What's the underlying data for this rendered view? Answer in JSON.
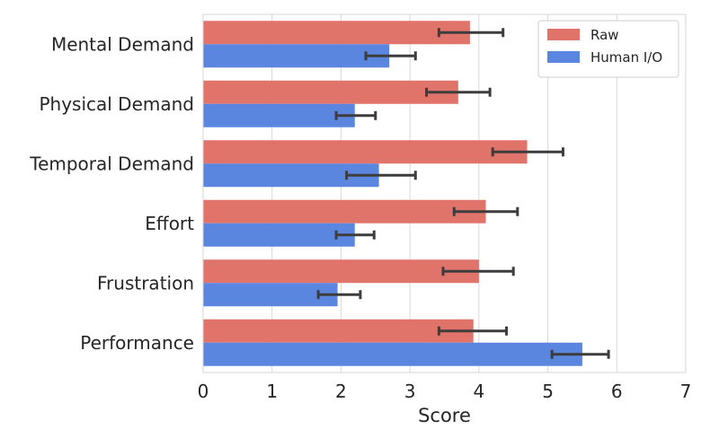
{
  "chart_data": {
    "type": "bar",
    "orientation": "horizontal",
    "title": "",
    "xlabel": "Score",
    "ylabel": "",
    "xlim": [
      0,
      7
    ],
    "xticks": [
      0,
      1,
      2,
      3,
      4,
      5,
      6,
      7
    ],
    "grid": true,
    "legend_position": "top-right",
    "categories": [
      "Mental Demand",
      "Physical Demand",
      "Temporal Demand",
      "Effort",
      "Frustration",
      "Performance"
    ],
    "series": [
      {
        "name": "Raw",
        "color": "#E0736A",
        "values": [
          3.87,
          3.7,
          4.7,
          4.1,
          4.0,
          3.92
        ],
        "err_low": [
          3.42,
          3.24,
          4.2,
          3.64,
          3.48,
          3.42
        ],
        "err_high": [
          4.35,
          4.16,
          5.22,
          4.56,
          4.5,
          4.4
        ]
      },
      {
        "name": "Human I/O",
        "color": "#5B86E0",
        "values": [
          2.7,
          2.2,
          2.55,
          2.2,
          1.95,
          5.5
        ],
        "err_low": [
          2.36,
          1.93,
          2.08,
          1.93,
          1.67,
          5.06
        ],
        "err_high": [
          3.08,
          2.5,
          3.08,
          2.48,
          2.28,
          5.88
        ]
      }
    ]
  }
}
